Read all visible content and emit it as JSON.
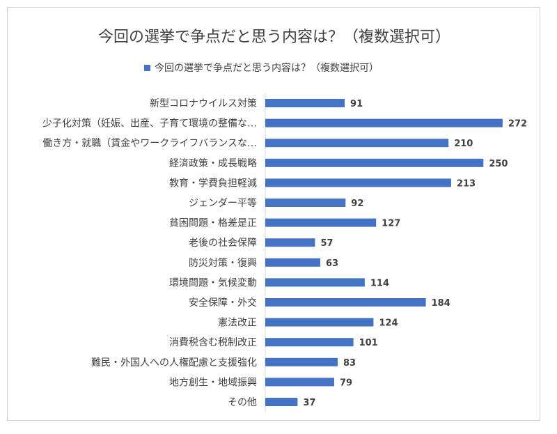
{
  "chart_data": {
    "type": "bar",
    "orientation": "horizontal",
    "title": "今回の選挙で争点だと思う内容は？（複数選択可）",
    "legend_position": "top",
    "grid": false,
    "xlim": [
      0,
      300
    ],
    "bar_color": "#4472c4",
    "categories": [
      "新型コロナウイルス対策",
      "少子化対策（妊娠、出産、子育て環境の整備な…",
      "働き方・就職（賃金やワークライフバランスな…",
      "経済政策・成長戦略",
      "教育・学費負担軽減",
      "ジェンダー平等",
      "貧困問題・格差是正",
      "老後の社会保障",
      "防災対策・復興",
      "環境問題・気候変動",
      "安全保障・外交",
      "憲法改正",
      "消費税含む税制改正",
      "難民・外国人への人権配慮と支援強化",
      "地方創生・地域振興",
      "その他"
    ],
    "series": [
      {
        "name": "今回の選挙で争点だと思う内容は？（複数選択可）",
        "values": [
          91,
          272,
          210,
          250,
          213,
          92,
          127,
          57,
          63,
          114,
          184,
          124,
          101,
          83,
          79,
          37
        ]
      }
    ]
  }
}
